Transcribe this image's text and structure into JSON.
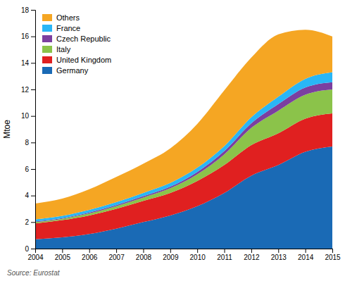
{
  "chart_data": {
    "type": "area",
    "stacked": true,
    "x": [
      2004,
      2005,
      2006,
      2007,
      2008,
      2009,
      2010,
      2011,
      2012,
      2013,
      2014,
      2015
    ],
    "series": [
      {
        "name": "Germany",
        "color": "#1a6ab5",
        "values": [
          0.7,
          0.85,
          1.1,
          1.5,
          2.0,
          2.5,
          3.2,
          4.2,
          5.5,
          6.3,
          7.3,
          7.7
        ]
      },
      {
        "name": "United Kingdom",
        "color": "#e02020",
        "values": [
          1.2,
          1.3,
          1.4,
          1.5,
          1.6,
          1.7,
          1.9,
          2.1,
          2.3,
          2.4,
          2.5,
          2.5
        ]
      },
      {
        "name": "Italy",
        "color": "#8bc34a",
        "values": [
          0.1,
          0.1,
          0.15,
          0.2,
          0.25,
          0.35,
          0.5,
          0.8,
          1.3,
          1.7,
          1.8,
          1.8
        ]
      },
      {
        "name": "Czech Republic",
        "color": "#7b3fa0",
        "values": [
          0.05,
          0.05,
          0.07,
          0.08,
          0.1,
          0.12,
          0.18,
          0.25,
          0.35,
          0.5,
          0.55,
          0.55
        ]
      },
      {
        "name": "France",
        "color": "#29b6f6",
        "values": [
          0.15,
          0.17,
          0.2,
          0.22,
          0.25,
          0.28,
          0.32,
          0.38,
          0.45,
          0.55,
          0.65,
          0.75
        ]
      },
      {
        "name": "Others",
        "color": "#f5a623",
        "values": [
          1.2,
          1.3,
          1.55,
          1.9,
          2.2,
          2.6,
          3.3,
          4.2,
          4.5,
          4.7,
          3.7,
          2.7
        ]
      }
    ],
    "ylabel": "Mtoe",
    "xlim": [
      2004,
      2015
    ],
    "xticks": [
      2004,
      2005,
      2006,
      2007,
      2008,
      2009,
      2010,
      2011,
      2012,
      2013,
      2014,
      2015
    ],
    "ylim": [
      0,
      18
    ],
    "yticks": [
      0,
      2,
      4,
      6,
      8,
      10,
      12,
      14,
      16,
      18
    ],
    "grid": false,
    "legend": "upper left",
    "annotations": [
      "Source: Eurostat"
    ]
  }
}
